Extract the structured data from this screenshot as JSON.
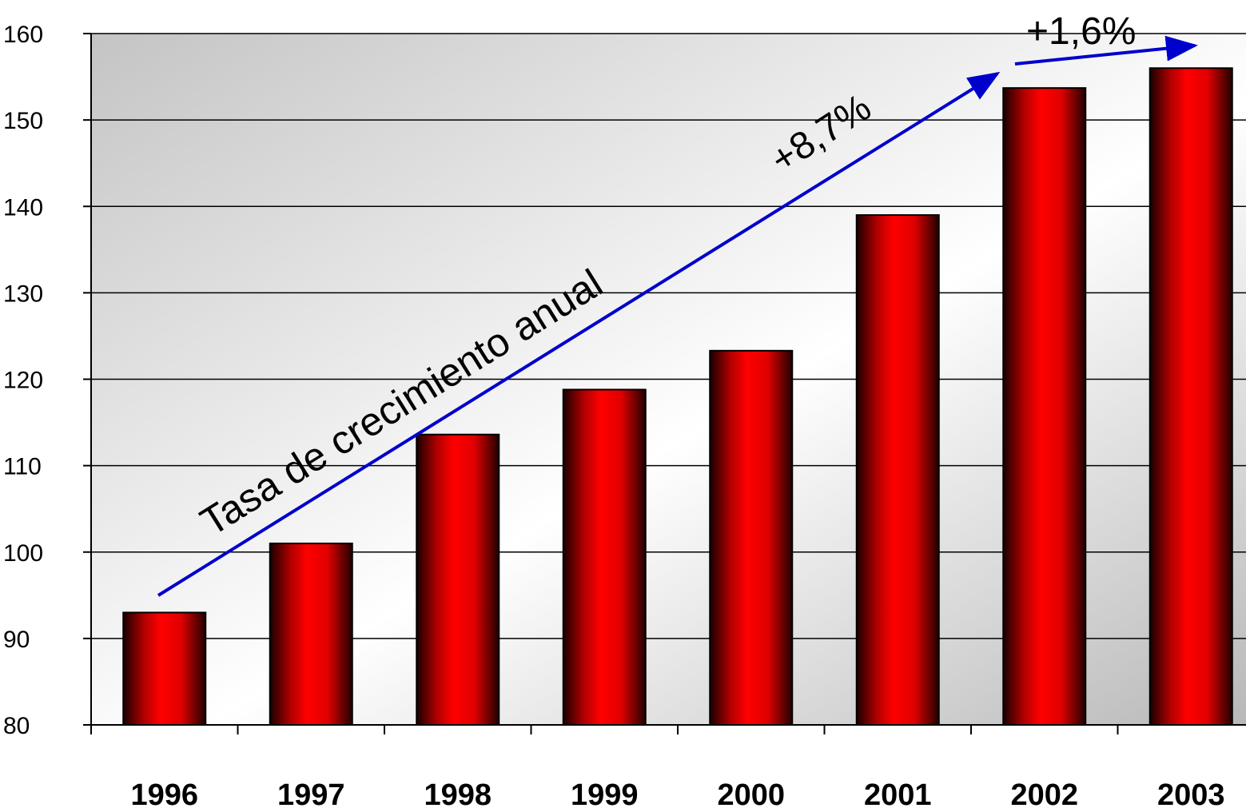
{
  "chart_data": {
    "type": "bar",
    "categories": [
      "1996",
      "1997",
      "1998",
      "1999",
      "2000",
      "2001",
      "2002",
      "2003"
    ],
    "values": [
      93,
      101,
      113.6,
      118.8,
      123.3,
      139,
      153.7,
      156
    ],
    "ylim": [
      80,
      160
    ],
    "yticks": [
      80,
      90,
      100,
      110,
      120,
      130,
      140,
      150,
      160
    ],
    "grid": true,
    "annotations": {
      "main_label": "Tasa de crecimiento anual",
      "growth_1": "+8,7%",
      "growth_2": "+1,6%"
    },
    "colors": {
      "bar": "#ff0000",
      "bar_dark": "#2a0000",
      "arrow": "#0000cc"
    }
  }
}
